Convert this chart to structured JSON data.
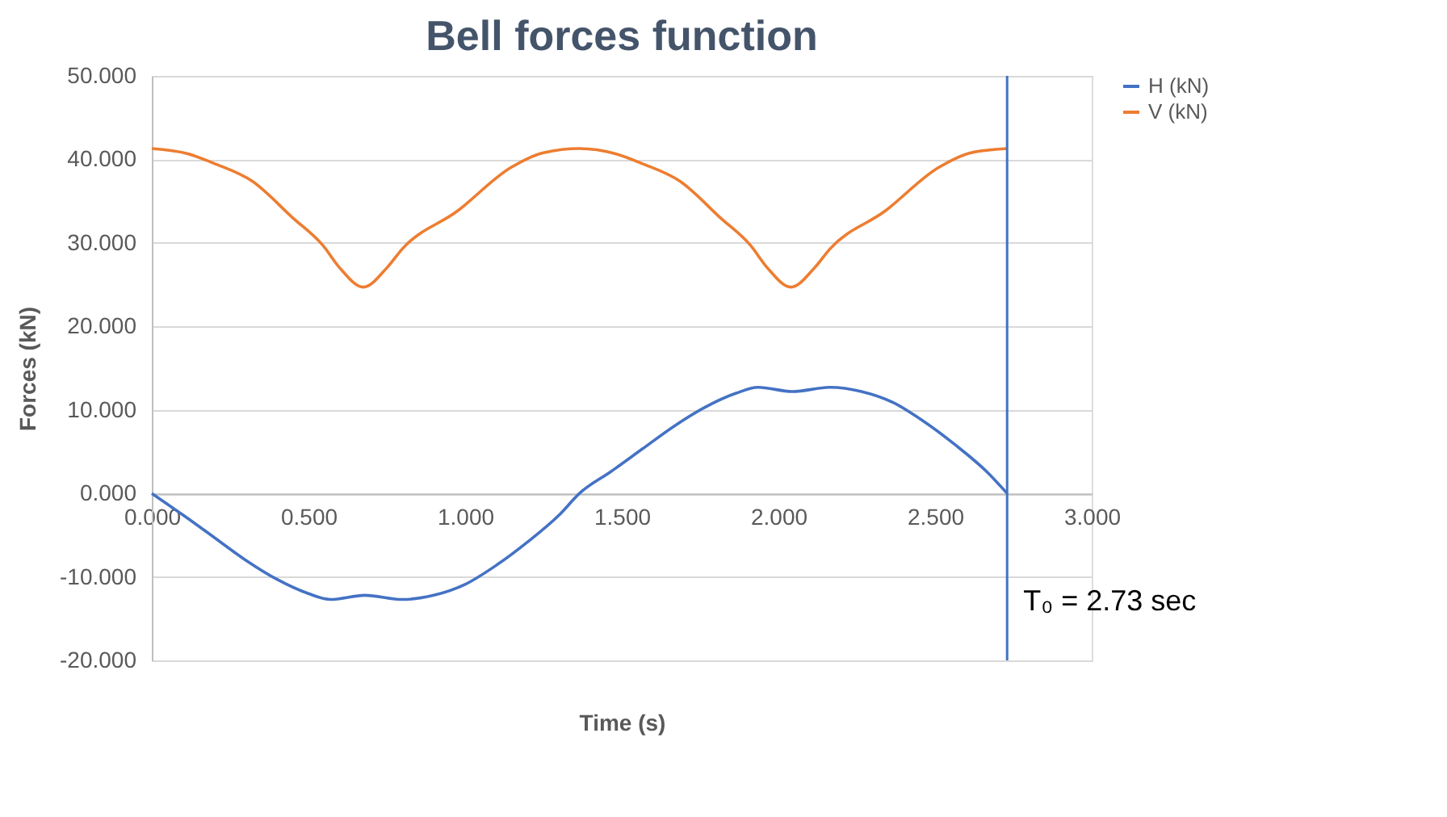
{
  "chart_data": {
    "type": "line",
    "title": "Bell forces function",
    "xlabel": "Time (s)",
    "ylabel": "Forces (kN)",
    "xlim": [
      0,
      3
    ],
    "xticks": [
      {
        "value": 0,
        "label": "0.000"
      },
      {
        "value": 0.5,
        "label": "0.500"
      },
      {
        "value": 1,
        "label": "1.000"
      },
      {
        "value": 1.5,
        "label": "1.500"
      },
      {
        "value": 2,
        "label": "2.000"
      },
      {
        "value": 2.5,
        "label": "2.500"
      },
      {
        "value": 3,
        "label": "3.000"
      }
    ],
    "ylim": [
      -20,
      50
    ],
    "yticks": [
      {
        "value": -20,
        "label": "-20.000"
      },
      {
        "value": -10,
        "label": "-10.000"
      },
      {
        "value": 0,
        "label": "0.000"
      },
      {
        "value": 10,
        "label": "10.000"
      },
      {
        "value": 20,
        "label": "20.000"
      },
      {
        "value": 30,
        "label": "30.000"
      },
      {
        "value": 40,
        "label": "40.000"
      },
      {
        "value": 50,
        "label": "50.000"
      }
    ],
    "grid": "y",
    "legend": "right",
    "marker": "none",
    "line_style": "solid",
    "series": [
      {
        "name": "H (kN)",
        "color": "#4472c4",
        "x": [
          0,
          0.1,
          0.2,
          0.3,
          0.4,
          0.5,
          0.57,
          0.68,
          0.8,
          0.9,
          1.0,
          1.1,
          1.2,
          1.3,
          1.365,
          1.465,
          1.565,
          1.665,
          1.765,
          1.865,
          1.935,
          2.045,
          2.165,
          2.265,
          2.365,
          2.465,
          2.565,
          2.665,
          2.73
        ],
        "values": [
          0,
          -2.6,
          -5.3,
          -8.0,
          -10.3,
          -12.0,
          -12.7,
          -12.2,
          -12.7,
          -12.2,
          -10.9,
          -8.6,
          -5.8,
          -2.6,
          0,
          2.6,
          5.3,
          8.0,
          10.3,
          12.0,
          12.7,
          12.2,
          12.7,
          12.2,
          10.9,
          8.6,
          5.8,
          2.6,
          0
        ]
      },
      {
        "name": "V (kN)",
        "color": "#ed7d31",
        "x": [
          0,
          0.113,
          0.2,
          0.32,
          0.45,
          0.546,
          0.6,
          0.675,
          0.75,
          0.8,
          0.975,
          1.145,
          1.25,
          1.365,
          1.478,
          1.565,
          1.685,
          1.815,
          1.911,
          1.965,
          2.04,
          2.115,
          2.165,
          2.34,
          2.51,
          2.615,
          2.73
        ],
        "values": [
          41.3,
          40.7,
          39.5,
          37.4,
          33.0,
          29.7,
          27.0,
          24.7,
          27.0,
          29.3,
          33.8,
          39.0,
          40.8,
          41.3,
          40.7,
          39.5,
          37.4,
          33.0,
          29.7,
          27.0,
          24.7,
          27.0,
          29.3,
          33.8,
          39.0,
          40.8,
          41.3
        ]
      }
    ],
    "ref_lines": [
      {
        "axis": "x",
        "value": 2.73,
        "label": "T₀ = 2.73 sec",
        "color": "#4472c4"
      }
    ]
  }
}
